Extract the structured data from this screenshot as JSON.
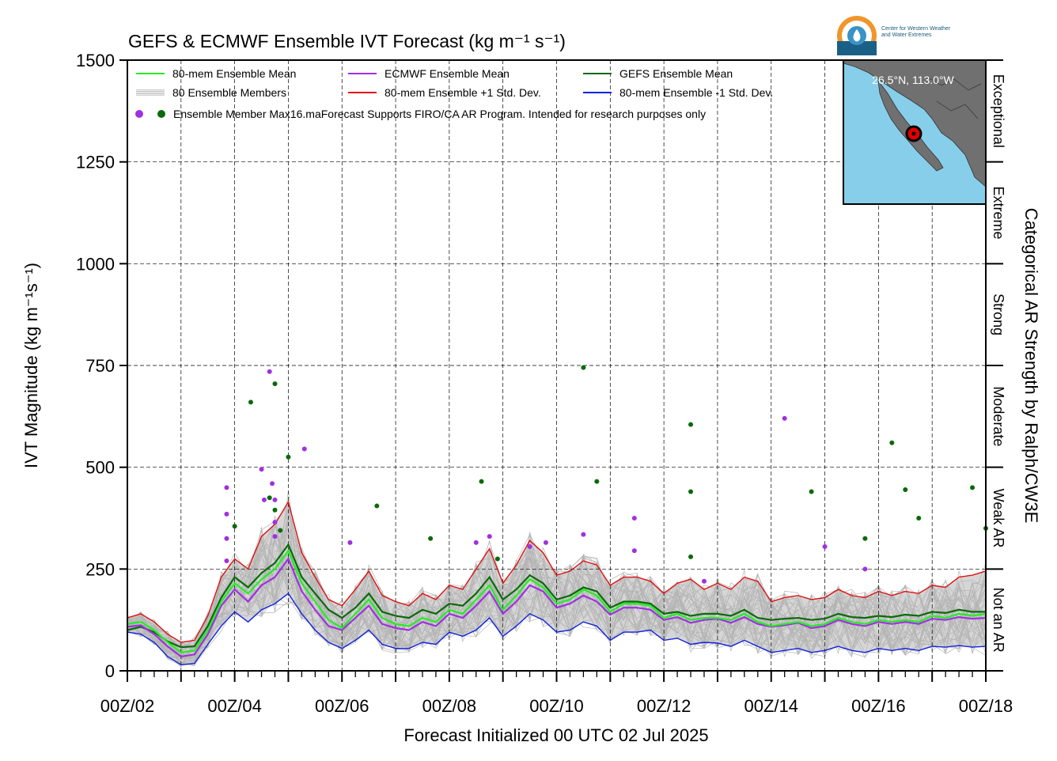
{
  "logo": {
    "line1": "Center for Western Weather",
    "line2": "and Water Extremes"
  },
  "chart_data": {
    "type": "line",
    "title": "GEFS & ECMWF Ensemble IVT Forecast (kg m⁻¹ s⁻¹)",
    "xlabel": "Forecast Initialized 00 UTC 02 Jul 2025",
    "ylabel": "IVT Magnitude (kg m⁻¹s⁻¹)",
    "right_label": "Categorical AR Strength by Ralph/CW3E",
    "xlim": [
      0,
      16
    ],
    "ylim": [
      0,
      1500
    ],
    "grid": true,
    "x_ticks": [
      {
        "x": 0,
        "label": "00Z/02"
      },
      {
        "x": 2,
        "label": "00Z/04"
      },
      {
        "x": 4,
        "label": "00Z/06"
      },
      {
        "x": 6,
        "label": "00Z/08"
      },
      {
        "x": 8,
        "label": "00Z/10"
      },
      {
        "x": 10,
        "label": "00Z/12"
      },
      {
        "x": 12,
        "label": "00Z/14"
      },
      {
        "x": 14,
        "label": "00Z/16"
      },
      {
        "x": 16,
        "label": "00Z/18"
      }
    ],
    "y_ticks": [
      0,
      250,
      500,
      750,
      1000,
      1250,
      1500
    ],
    "categories": [
      {
        "label": "Not an AR",
        "low": 0,
        "high": 250
      },
      {
        "label": "Weak AR",
        "low": 250,
        "high": 500
      },
      {
        "label": "Moderate",
        "low": 500,
        "high": 750
      },
      {
        "label": "Strong",
        "low": 750,
        "high": 1000
      },
      {
        "label": "Extreme",
        "low": 1000,
        "high": 1250
      },
      {
        "label": "Exceptional",
        "low": 1250,
        "high": 1500
      }
    ],
    "legend": {
      "placement": "top-left",
      "entries": [
        {
          "key": "mean80",
          "label": "80-mem Ensemble Mean"
        },
        {
          "key": "ecmwf",
          "label": "ECMWF Ensemble Mean"
        },
        {
          "key": "gefs",
          "label": "GEFS Ensemble Mean"
        },
        {
          "key": "members",
          "label": "80 Ensemble Members"
        },
        {
          "key": "plus",
          "label": "80-mem Ensemble +1 Std. Dev."
        },
        {
          "key": "minus",
          "label": "80-mem Ensemble -1 Std. Dev."
        },
        {
          "key": "max",
          "label": "Ensemble Member Max16.maForecast Supports FIRO/CA AR Program. Intended for research purposes only"
        }
      ]
    },
    "inset_map": {
      "label": "26.5°N, 113.0°W"
    },
    "colors": {
      "mean80": "#22ee22",
      "ecmwf": "#a030e0",
      "gefs": "#0a6a0a",
      "plus": "#e01010",
      "minus": "#1020e0",
      "members": "#b4b4b4",
      "spread": "#d6d6d6",
      "ocean": "#87ceeb",
      "land": "#707070"
    },
    "x": [
      0,
      0.25,
      0.5,
      0.75,
      1,
      1.25,
      1.5,
      1.75,
      2,
      2.25,
      2.5,
      2.75,
      3,
      3.25,
      3.5,
      3.75,
      4,
      4.25,
      4.5,
      4.75,
      5,
      5.25,
      5.5,
      5.75,
      6,
      6.25,
      6.5,
      6.75,
      7,
      7.25,
      7.5,
      7.75,
      8,
      8.25,
      8.5,
      8.75,
      9,
      9.25,
      9.5,
      9.75,
      10,
      10.25,
      10.5,
      10.75,
      11,
      11.25,
      11.5,
      11.75,
      12,
      12.25,
      12.5,
      12.75,
      13,
      13.25,
      13.5,
      13.75,
      14,
      14.25,
      14.5,
      14.75,
      15,
      15.25,
      15.5,
      15.75,
      16
    ],
    "series": [
      {
        "name": "80-mem Ensemble Mean",
        "key": "mean80",
        "values": [
          115,
          120,
          100,
          70,
          45,
          50,
          100,
          170,
          215,
          190,
          225,
          250,
          295,
          215,
          170,
          125,
          105,
          140,
          175,
          130,
          115,
          110,
          130,
          120,
          150,
          140,
          175,
          210,
          150,
          185,
          225,
          205,
          165,
          175,
          200,
          185,
          145,
          165,
          165,
          160,
          130,
          140,
          125,
          130,
          130,
          125,
          140,
          120,
          110,
          115,
          120,
          110,
          115,
          130,
          120,
          115,
          125,
          120,
          125,
          120,
          135,
          130,
          140,
          135,
          140
        ]
      },
      {
        "name": "ECMWF Ensemble Mean",
        "key": "ecmwf",
        "values": [
          108,
          112,
          90,
          60,
          35,
          40,
          90,
          160,
          200,
          170,
          210,
          230,
          275,
          195,
          150,
          110,
          100,
          130,
          160,
          115,
          105,
          100,
          120,
          110,
          140,
          130,
          160,
          195,
          140,
          170,
          210,
          195,
          155,
          165,
          185,
          170,
          138,
          155,
          155,
          150,
          125,
          132,
          118,
          125,
          128,
          118,
          132,
          115,
          108,
          112,
          118,
          105,
          110,
          125,
          115,
          110,
          120,
          115,
          120,
          115,
          128,
          125,
          132,
          128,
          130
        ]
      },
      {
        "name": "GEFS Ensemble Mean",
        "key": "gefs",
        "values": [
          100,
          108,
          95,
          72,
          58,
          60,
          110,
          180,
          230,
          205,
          240,
          265,
          310,
          230,
          190,
          150,
          130,
          155,
          190,
          145,
          135,
          130,
          150,
          140,
          165,
          160,
          190,
          230,
          175,
          200,
          235,
          215,
          175,
          185,
          205,
          195,
          155,
          170,
          170,
          165,
          140,
          145,
          135,
          140,
          140,
          135,
          150,
          130,
          125,
          128,
          130,
          125,
          128,
          140,
          132,
          130,
          135,
          132,
          138,
          135,
          145,
          142,
          150,
          145,
          145
        ]
      },
      {
        "name": "80-mem Ensemble +1 Std. Dev.",
        "key": "plus",
        "values": [
          130,
          140,
          120,
          90,
          70,
          75,
          135,
          230,
          275,
          250,
          330,
          360,
          415,
          290,
          230,
          175,
          160,
          200,
          245,
          185,
          170,
          160,
          190,
          175,
          210,
          200,
          250,
          300,
          215,
          260,
          320,
          290,
          235,
          245,
          270,
          260,
          210,
          230,
          230,
          220,
          190,
          215,
          225,
          200,
          215,
          200,
          230,
          220,
          170,
          180,
          185,
          175,
          180,
          200,
          185,
          180,
          195,
          185,
          195,
          190,
          210,
          205,
          230,
          235,
          245
        ]
      },
      {
        "name": "80-mem Ensemble -1 Std. Dev.",
        "key": "minus",
        "values": [
          95,
          90,
          70,
          35,
          15,
          18,
          65,
          110,
          145,
          120,
          150,
          165,
          190,
          140,
          100,
          70,
          55,
          75,
          100,
          65,
          55,
          55,
          70,
          65,
          95,
          85,
          100,
          130,
          85,
          110,
          140,
          125,
          95,
          100,
          120,
          110,
          75,
          95,
          95,
          100,
          75,
          80,
          65,
          70,
          68,
          60,
          75,
          60,
          45,
          50,
          55,
          45,
          50,
          60,
          50,
          45,
          55,
          50,
          55,
          50,
          60,
          58,
          62,
          58,
          60
        ]
      }
    ],
    "ensemble_max_points": [
      {
        "model": "ECMWF",
        "x": 1.85,
        "y": 450
      },
      {
        "model": "ECMWF",
        "x": 1.85,
        "y": 385
      },
      {
        "model": "ECMWF",
        "x": 1.85,
        "y": 325
      },
      {
        "model": "ECMWF",
        "x": 1.85,
        "y": 270
      },
      {
        "model": "ECMWF",
        "x": 2.5,
        "y": 495
      },
      {
        "model": "ECMWF",
        "x": 2.55,
        "y": 420
      },
      {
        "model": "ECMWF",
        "x": 2.65,
        "y": 735
      },
      {
        "model": "ECMWF",
        "x": 2.7,
        "y": 460
      },
      {
        "model": "ECMWF",
        "x": 2.75,
        "y": 420
      },
      {
        "model": "ECMWF",
        "x": 2.75,
        "y": 365
      },
      {
        "model": "ECMWF",
        "x": 2.75,
        "y": 330
      },
      {
        "model": "ECMWF",
        "x": 3.3,
        "y": 545
      },
      {
        "model": "ECMWF",
        "x": 4.15,
        "y": 315
      },
      {
        "model": "ECMWF",
        "x": 6.5,
        "y": 315
      },
      {
        "model": "ECMWF",
        "x": 6.75,
        "y": 330
      },
      {
        "model": "ECMWF",
        "x": 7.5,
        "y": 305
      },
      {
        "model": "ECMWF",
        "x": 7.8,
        "y": 315
      },
      {
        "model": "ECMWF",
        "x": 8.5,
        "y": 335
      },
      {
        "model": "ECMWF",
        "x": 9.45,
        "y": 375
      },
      {
        "model": "ECMWF",
        "x": 9.45,
        "y": 295
      },
      {
        "model": "ECMWF",
        "x": 10.75,
        "y": 220
      },
      {
        "model": "ECMWF",
        "x": 12.25,
        "y": 620
      },
      {
        "model": "ECMWF",
        "x": 13.0,
        "y": 305
      },
      {
        "model": "ECMWF",
        "x": 13.75,
        "y": 250
      },
      {
        "model": "GEFS",
        "x": 2.0,
        "y": 355
      },
      {
        "model": "GEFS",
        "x": 2.3,
        "y": 660
      },
      {
        "model": "GEFS",
        "x": 2.65,
        "y": 425
      },
      {
        "model": "GEFS",
        "x": 2.75,
        "y": 705
      },
      {
        "model": "GEFS",
        "x": 2.75,
        "y": 395
      },
      {
        "model": "GEFS",
        "x": 2.85,
        "y": 345
      },
      {
        "model": "GEFS",
        "x": 3.0,
        "y": 525
      },
      {
        "model": "GEFS",
        "x": 4.65,
        "y": 405
      },
      {
        "model": "GEFS",
        "x": 5.65,
        "y": 325
      },
      {
        "model": "GEFS",
        "x": 6.6,
        "y": 465
      },
      {
        "model": "GEFS",
        "x": 6.9,
        "y": 275
      },
      {
        "model": "GEFS",
        "x": 8.5,
        "y": 745
      },
      {
        "model": "GEFS",
        "x": 8.75,
        "y": 465
      },
      {
        "model": "GEFS",
        "x": 10.5,
        "y": 605
      },
      {
        "model": "GEFS",
        "x": 10.5,
        "y": 440
      },
      {
        "model": "GEFS",
        "x": 10.5,
        "y": 280
      },
      {
        "model": "GEFS",
        "x": 12.75,
        "y": 440
      },
      {
        "model": "GEFS",
        "x": 13.75,
        "y": 325
      },
      {
        "model": "GEFS",
        "x": 14.25,
        "y": 560
      },
      {
        "model": "GEFS",
        "x": 14.5,
        "y": 445
      },
      {
        "model": "GEFS",
        "x": 14.75,
        "y": 375
      },
      {
        "model": "GEFS",
        "x": 15.75,
        "y": 450
      },
      {
        "model": "GEFS",
        "x": 16.0,
        "y": 350
      }
    ]
  }
}
